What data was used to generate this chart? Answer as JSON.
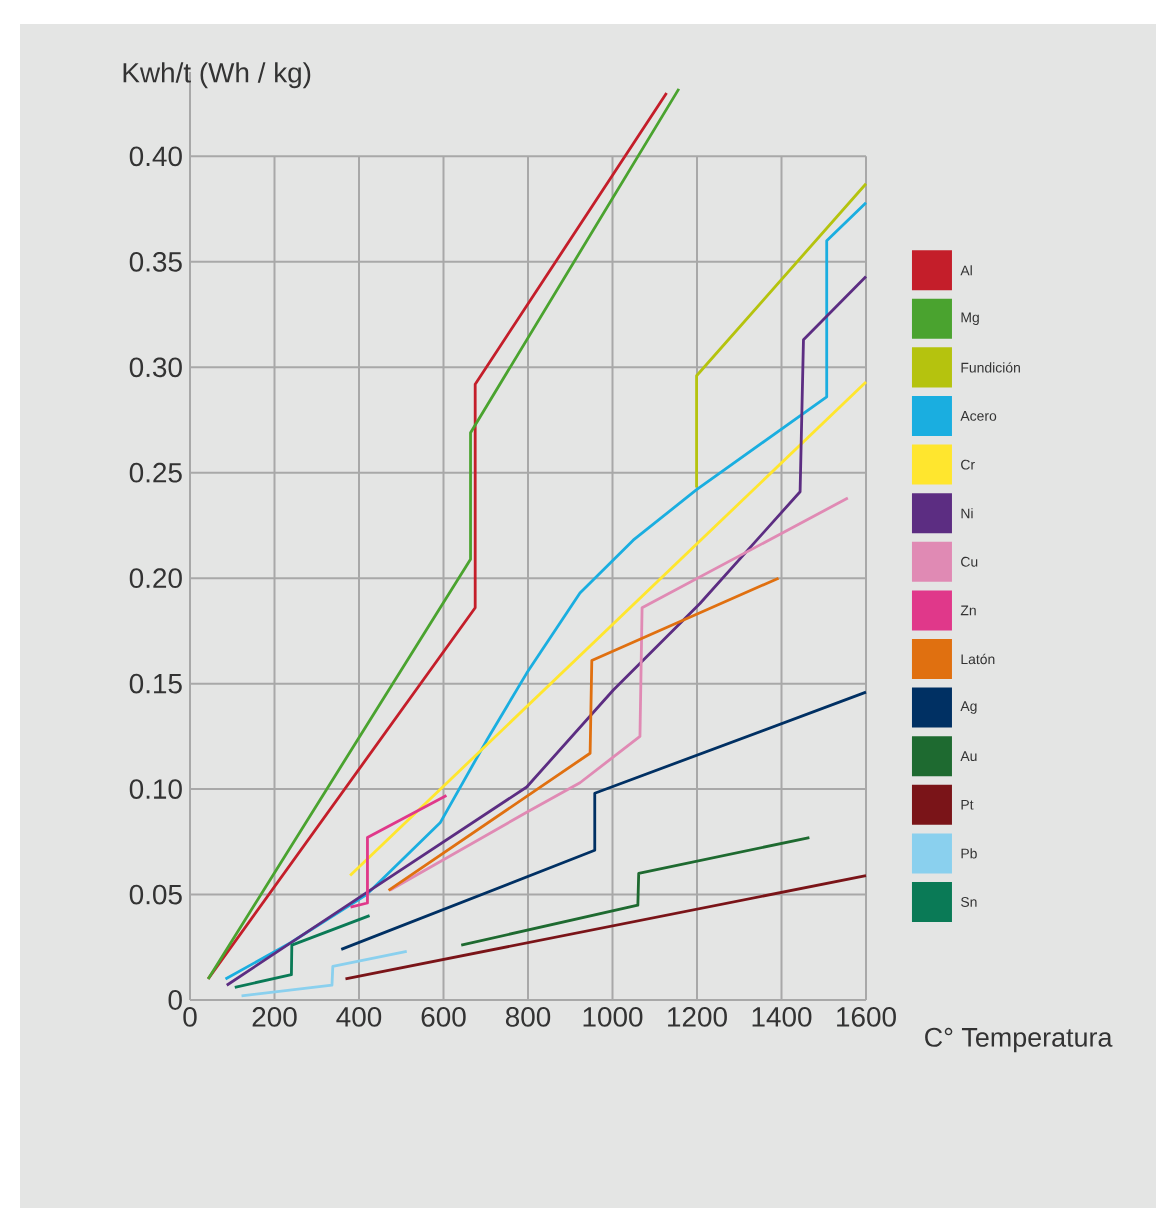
{
  "chart_data": {
    "type": "line",
    "ylabel": "Kwh/t (Wh / kg)",
    "xlabel": "C° Temperatura",
    "xlim": [
      0,
      1600
    ],
    "ylim": [
      0,
      0.44
    ],
    "xticks": [
      0,
      200,
      400,
      600,
      800,
      1000,
      1200,
      1400,
      1600
    ],
    "yticks": [
      0,
      {
        "value": 0.05,
        "label": "0.05"
      },
      {
        "value": 0.1,
        "label": "0.10"
      },
      {
        "value": 0.15,
        "label": "0.15"
      },
      {
        "value": 0.2,
        "label": "0.20"
      },
      {
        "value": 0.25,
        "label": "0.25"
      },
      {
        "value": 0.3,
        "label": "0.30"
      },
      {
        "value": 0.35,
        "label": "0.35"
      },
      {
        "value": 0.4,
        "label": "0.40"
      }
    ],
    "grid": true,
    "legend": "right",
    "series": [
      {
        "name": "Al",
        "color": "#c41e2a",
        "x": [
          43,
          675,
          675,
          1128
        ],
        "values": [
          0.01,
          0.186,
          0.292,
          0.43
        ]
      },
      {
        "name": "Mg",
        "color": "#4aa32f",
        "x": [
          43,
          664,
          664,
          1157
        ],
        "values": [
          0.01,
          0.209,
          0.269,
          0.432
        ]
      },
      {
        "name": "Fundición",
        "color": "#b5c30e",
        "x": [
          1199,
          1199,
          1600
        ],
        "values": [
          0.243,
          0.296,
          0.387
        ]
      },
      {
        "name": "Acero",
        "color": "#1aaee0",
        "x": [
          84,
          237,
          418,
          592,
          702,
          797,
          923,
          1049,
          1199,
          1507,
          1507,
          1600
        ],
        "values": [
          0.01,
          0.027,
          0.05,
          0.084,
          0.123,
          0.155,
          0.193,
          0.218,
          0.242,
          0.286,
          0.36,
          0.378
        ]
      },
      {
        "name": "Cr",
        "color": "#ffe62e",
        "x": [
          379,
          1600
        ],
        "values": [
          0.059,
          0.293
        ]
      },
      {
        "name": "Ni",
        "color": "#5c2d82",
        "x": [
          87,
          426,
          797,
          1002,
          1207,
          1444,
          1452,
          1600
        ],
        "values": [
          0.007,
          0.052,
          0.101,
          0.147,
          0.188,
          0.241,
          0.313,
          0.343
        ]
      },
      {
        "name": "Cu",
        "color": "#e08ab4",
        "x": [
          473,
          797,
          923,
          1065,
          1070,
          1557
        ],
        "values": [
          0.052,
          0.089,
          0.103,
          0.125,
          0.186,
          0.238
        ]
      },
      {
        "name": "Zn",
        "color": "#e0388a",
        "x": [
          380,
          420,
          420,
          607
        ],
        "values": [
          0.044,
          0.046,
          0.077,
          0.097
        ]
      },
      {
        "name": "Latón",
        "color": "#e07010",
        "x": [
          470,
          947,
          951,
          1393
        ],
        "values": [
          0.052,
          0.117,
          0.161,
          0.2
        ]
      },
      {
        "name": "Ag",
        "color": "#003063",
        "x": [
          358,
          958,
          958,
          1600
        ],
        "values": [
          0.024,
          0.071,
          0.098,
          0.146
        ]
      },
      {
        "name": "Au",
        "color": "#1e6a30",
        "x": [
          642,
          1060,
          1062,
          1466
        ],
        "values": [
          0.026,
          0.045,
          0.06,
          0.077
        ]
      },
      {
        "name": "Pt",
        "color": "#7a1418",
        "x": [
          368,
          1600
        ],
        "values": [
          0.01,
          0.059
        ]
      },
      {
        "name": "Pb",
        "color": "#8ad0ee",
        "x": [
          122,
          336,
          338,
          513
        ],
        "values": [
          0.002,
          0.007,
          0.016,
          0.023
        ]
      },
      {
        "name": "Sn",
        "color": "#0a7a56",
        "x": [
          106,
          240,
          241,
          425
        ],
        "values": [
          0.006,
          0.012,
          0.026,
          0.04
        ]
      }
    ]
  }
}
